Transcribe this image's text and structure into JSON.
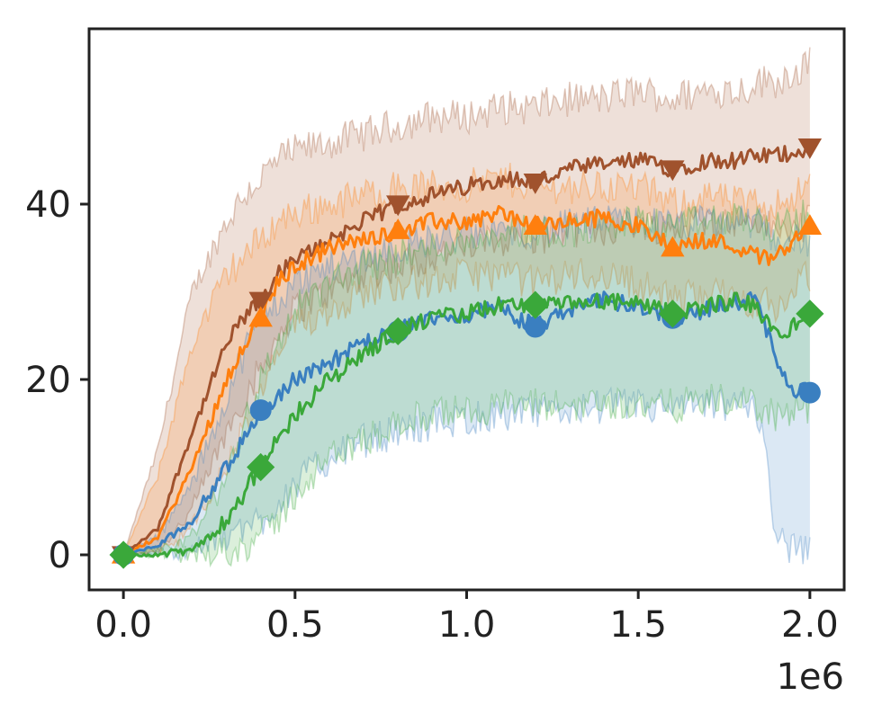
{
  "chart_data": {
    "type": "line",
    "title": "",
    "xlabel": "",
    "ylabel": "",
    "x_offset_label": "1e6",
    "xlim": [
      -0.1,
      2.1
    ],
    "ylim": [
      -4,
      60
    ],
    "x_ticks": [
      0.0,
      0.5,
      1.0,
      1.5,
      2.0
    ],
    "x_tick_labels": [
      "0.0",
      "0.5",
      "1.0",
      "1.5",
      "2.0"
    ],
    "y_ticks": [
      0,
      20,
      40
    ],
    "y_tick_labels": [
      "0",
      "20",
      "40"
    ],
    "grid": false,
    "legend": "none",
    "x": [
      0,
      0.1,
      0.2,
      0.3,
      0.35,
      0.4,
      0.45,
      0.5,
      0.6,
      0.7,
      0.8,
      0.9,
      1.0,
      1.1,
      1.2,
      1.3,
      1.4,
      1.5,
      1.6,
      1.7,
      1.8,
      1.85,
      1.9,
      1.95,
      2.0
    ],
    "series": [
      {
        "color": "#a0522d",
        "marker": "triangle-down",
        "values": [
          0,
          3,
          14,
          24,
          27,
          29,
          32,
          33.5,
          36,
          38,
          40,
          41,
          42,
          43,
          42.5,
          44,
          44.5,
          45,
          44,
          45,
          45,
          45.5,
          45.5,
          46,
          46.5
        ],
        "band_low": [
          0,
          0.5,
          5,
          14,
          18,
          21,
          25,
          28,
          30,
          32,
          33,
          34,
          35,
          36,
          36,
          37,
          37,
          38,
          37,
          38,
          38,
          38,
          37,
          37,
          38
        ],
        "band_high": [
          0,
          12,
          30,
          38,
          41,
          43,
          45,
          46,
          47,
          48,
          49,
          50,
          50,
          51,
          51,
          52,
          52,
          53,
          52,
          53,
          53,
          54,
          54,
          55,
          56
        ]
      },
      {
        "color": "#ff7f0e",
        "marker": "triangle-up",
        "values": [
          0,
          2,
          10,
          20,
          24,
          27,
          31,
          33,
          35,
          36,
          37,
          38,
          38,
          39,
          37.5,
          38,
          38.5,
          37.5,
          35,
          36,
          35,
          34,
          34,
          36,
          37.5
        ],
        "band_low": [
          0,
          0.3,
          3,
          10,
          14,
          18,
          23,
          26,
          28,
          30,
          31,
          31,
          32,
          32,
          31,
          32,
          32,
          31,
          29,
          30,
          29,
          29,
          28,
          30,
          32
        ],
        "band_high": [
          0,
          9,
          24,
          32,
          34,
          36,
          38,
          39,
          40,
          41,
          42,
          42,
          42,
          43,
          42,
          42,
          42,
          42,
          40,
          41,
          40,
          40,
          40,
          41,
          42
        ]
      },
      {
        "color": "#3a7fc0",
        "marker": "circle",
        "values": [
          0,
          1,
          4,
          10,
          13,
          16.5,
          18,
          20,
          22,
          24,
          25.5,
          27,
          27.5,
          28,
          26,
          28,
          29,
          28.5,
          27,
          28,
          29,
          29,
          22,
          19,
          18.5
        ],
        "band_low": [
          0,
          0.2,
          0.5,
          2,
          3,
          4,
          6,
          8,
          11,
          13,
          14,
          15,
          15.5,
          16,
          16,
          16.5,
          17,
          17,
          16.5,
          17,
          17,
          16.5,
          3,
          0.5,
          0.5
        ],
        "band_high": [
          0,
          2,
          8,
          18,
          23,
          27,
          29,
          31,
          33,
          34,
          35,
          36,
          36.5,
          37,
          37,
          37.5,
          38,
          38,
          37.5,
          38,
          38,
          38,
          36,
          36,
          36
        ]
      },
      {
        "color": "#3aa83a",
        "marker": "diamond",
        "values": [
          0,
          0,
          0.5,
          4,
          7,
          10,
          13,
          16,
          20,
          23,
          25.5,
          27,
          27.5,
          28.5,
          28.5,
          28.5,
          29,
          28.5,
          27.5,
          28.5,
          29,
          28,
          25,
          26,
          27.5
        ],
        "band_low": [
          0,
          0,
          0,
          0.5,
          1,
          2,
          4,
          7,
          11,
          13,
          15,
          16,
          16.5,
          17,
          17,
          17,
          17.5,
          17,
          17,
          17.5,
          17.5,
          17,
          16,
          16,
          17
        ],
        "band_high": [
          0,
          0.5,
          2,
          9,
          15,
          20,
          24,
          28,
          31,
          33,
          34,
          35,
          36,
          37,
          37,
          37,
          37.5,
          38,
          37.5,
          38,
          38.5,
          38,
          37,
          38,
          39
        ]
      }
    ],
    "markers_at_x": [
      0,
      0.4,
      0.8,
      1.2,
      1.6,
      2.0
    ]
  }
}
